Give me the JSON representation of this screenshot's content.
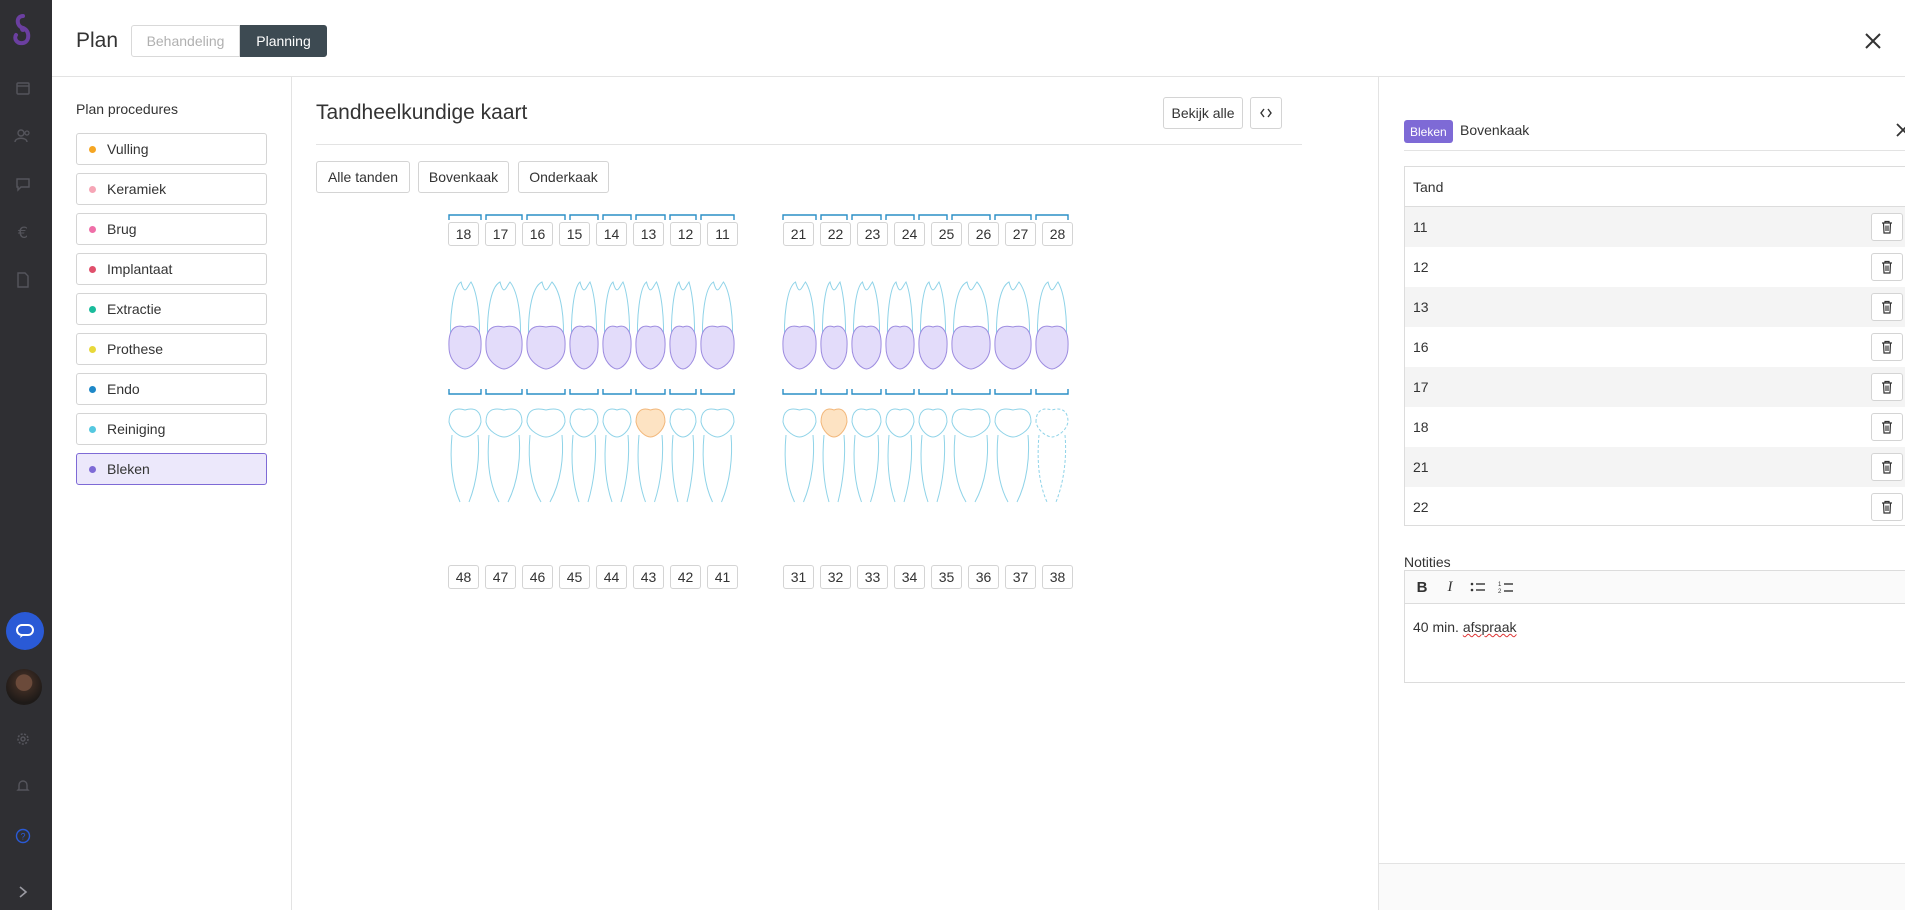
{
  "header": {
    "title": "Plan",
    "tabs": [
      {
        "label": "Behandeling",
        "active": false
      },
      {
        "label": "Planning",
        "active": true
      }
    ]
  },
  "procedures": {
    "heading": "Plan procedures",
    "items": [
      {
        "label": "Vulling",
        "color": "#f5a623"
      },
      {
        "label": "Keramiek",
        "color": "#f6a6b6"
      },
      {
        "label": "Brug",
        "color": "#ef6fa8"
      },
      {
        "label": "Implantaat",
        "color": "#e0506c"
      },
      {
        "label": "Extractie",
        "color": "#1abc9c"
      },
      {
        "label": "Prothese",
        "color": "#e8d83a"
      },
      {
        "label": "Endo",
        "color": "#1e88c8"
      },
      {
        "label": "Reiniging",
        "color": "#55c8e0"
      },
      {
        "label": "Bleken",
        "color": "#7e6ad6",
        "active": true
      }
    ]
  },
  "chart": {
    "title": "Tandheelkundige kaart",
    "view_all_label": "Bekijk alle",
    "code_label": "<>",
    "filters": [
      "Alle tanden",
      "Bovenkaak",
      "Onderkaak"
    ],
    "upper_numbers": [
      "18",
      "17",
      "16",
      "15",
      "14",
      "13",
      "12",
      "11",
      "21",
      "22",
      "23",
      "24",
      "25",
      "26",
      "27",
      "28"
    ],
    "lower_numbers": [
      "48",
      "47",
      "46",
      "45",
      "44",
      "43",
      "42",
      "41",
      "31",
      "32",
      "33",
      "34",
      "35",
      "36",
      "37",
      "38"
    ],
    "selected_color": "#e3dcfa",
    "selected_stroke": "#9d8ce0",
    "highlight_color": "#fde3c3",
    "tooth_stroke": "#8fd3e8"
  },
  "detail": {
    "badge": "Bleken",
    "title": "Bovenkaak",
    "table_header": "Tand",
    "teeth": [
      "11",
      "12",
      "13",
      "16",
      "17",
      "18",
      "21",
      "22"
    ],
    "notes_label": "Notities",
    "notes_prefix": "40 min. ",
    "notes_word": "afspraak"
  }
}
